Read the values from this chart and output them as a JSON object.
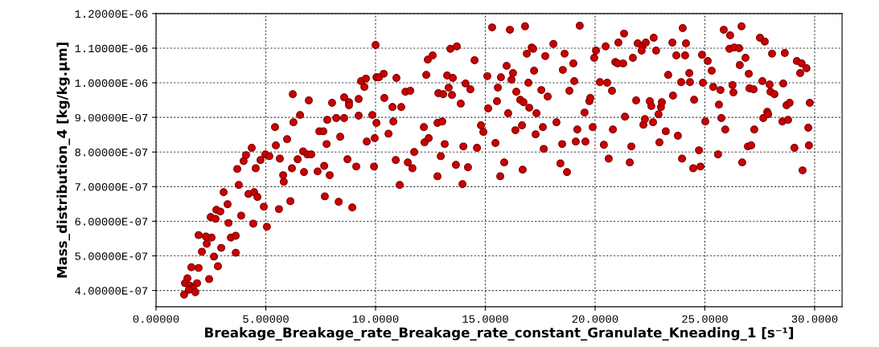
{
  "chart_data": {
    "type": "scatter",
    "xlabel": "Breakage_Breakage_rate_Breakage_rate_constant_Granulate_Kneading_1 [s⁻¹]",
    "ylabel": "Mass_distribution_4 [kg/kg.µm]",
    "xlim": [
      0,
      31.25
    ],
    "ylim": [
      3.53e-07,
      1.2e-06
    ],
    "xticks": [
      {
        "value": 0,
        "label": "0.00000"
      },
      {
        "value": 5,
        "label": "5.00000"
      },
      {
        "value": 10,
        "label": "10.0000"
      },
      {
        "value": 15,
        "label": "15.0000"
      },
      {
        "value": 20,
        "label": "20.0000"
      },
      {
        "value": 25,
        "label": "25.0000"
      },
      {
        "value": 30,
        "label": "30.0000"
      }
    ],
    "yticks": [
      {
        "value": 4e-07,
        "label": "4.00000E-07"
      },
      {
        "value": 5e-07,
        "label": "5.00000E-07"
      },
      {
        "value": 6e-07,
        "label": "6.00000E-07"
      },
      {
        "value": 7e-07,
        "label": "7.00000E-07"
      },
      {
        "value": 8e-07,
        "label": "8.00000E-07"
      },
      {
        "value": 9e-07,
        "label": "9.00000E-07"
      },
      {
        "value": 1e-06,
        "label": "1.00000E-06"
      },
      {
        "value": 1.1e-06,
        "label": "1.10000E-06"
      },
      {
        "value": 1.2e-06,
        "label": "1.20000E-06"
      }
    ],
    "grid": true,
    "marker": "circle",
    "series": [
      {
        "color": "#cc0000",
        "x": [
          1.28,
          1.43,
          1.32,
          1.54,
          1.68,
          1.87,
          1.79,
          1.5,
          1.61,
          1.94,
          2.42,
          1.94,
          2.27,
          2.53,
          2.31,
          2.09,
          2.64,
          2.82,
          2.97,
          3.3,
          2.49,
          2.71,
          2.75,
          2.93,
          3.26,
          3.08,
          3.77,
          3.7,
          3.41,
          3.63,
          3.63,
          3.88,
          4.21,
          4.47,
          4.62,
          4.43,
          4.91,
          5.05,
          5.6,
          6.12,
          3.99,
          4.1,
          4.36,
          4.54,
          4.76,
          4.98,
          5.16,
          5.46,
          5.42,
          5.64,
          5.97,
          5.79,
          5.82,
          6.19,
          6.26,
          6.23,
          6.56,
          6.96,
          6.7,
          6.89,
          7.07,
          6.45,
          6.74,
          7.36,
          7.44,
          7.62,
          7.77,
          7.66,
          7.91,
          7.69,
          8.32,
          8.94,
          7.8,
          8.02,
          8.21,
          8.57,
          8.39,
          8.72,
          9.12,
          8.57,
          8.79,
          8.79,
          9.23,
          9.23,
          9.34,
          9.56,
          9.49,
          9.6,
          9.85,
          9.93,
          10.0,
          10.04,
          10.04,
          9.96,
          10.15,
          10.37,
          10.4,
          10.59,
          10.77,
          10.81,
          10.92,
          10.95,
          11.1,
          11.17,
          11.36,
          11.58,
          11.47,
          11.68,
          11.76,
          12.2,
          12.23,
          12.42,
          12.31,
          12.38,
          12.6,
          12.82,
          12.82,
          13.04,
          12.86,
          13.08,
          12.97,
          13.15,
          13.26,
          13.52,
          13.33,
          13.48,
          13.41,
          13.7,
          13.66,
          13.88,
          13.96,
          14.0,
          14.1,
          14.21,
          14.32,
          14.51,
          14.62,
          14.8,
          14.91,
          15.09,
          15.13,
          15.31,
          15.46,
          15.57,
          15.53,
          15.68,
          15.71,
          15.86,
          15.97,
          16.04,
          16.12,
          16.19,
          16.26,
          16.37,
          16.41,
          16.59,
          16.74,
          16.67,
          16.7,
          16.81,
          16.89,
          16.96,
          17.0,
          17.11,
          17.18,
          17.22,
          17.29,
          17.33,
          17.55,
          17.62,
          17.66,
          17.73,
          17.84,
          18.1,
          18.24,
          18.42,
          18.5,
          18.53,
          18.61,
          18.72,
          18.83,
          19.01,
          19.05,
          19.12,
          19.19,
          19.3,
          19.52,
          19.56,
          19.74,
          19.78,
          19.89,
          19.96,
          20.04,
          20.22,
          20.55,
          20.4,
          20.48,
          20.62,
          20.77,
          20.81,
          20.92,
          21.03,
          21.06,
          21.28,
          21.32,
          21.36,
          21.58,
          21.65,
          21.72,
          21.87,
          21.94,
          22.16,
          22.12,
          22.31,
          22.2,
          22.27,
          22.49,
          22.56,
          22.64,
          22.67,
          22.78,
          22.93,
          22.89,
          23.0,
          23.04,
          23.22,
          23.33,
          23.52,
          23.55,
          23.7,
          23.77,
          23.92,
          23.96,
          23.99,
          24.1,
          24.14,
          24.29,
          24.32,
          24.47,
          24.8,
          24.51,
          24.73,
          24.87,
          24.91,
          25.02,
          25.13,
          25.31,
          25.38,
          25.6,
          25.64,
          25.71,
          25.75,
          25.86,
          25.93,
          26.15,
          26.12,
          26.34,
          26.56,
          26.26,
          26.3,
          26.59,
          26.67,
          26.7,
          26.85,
          26.96,
          27.11,
          27.0,
          27.03,
          27.22,
          27.25,
          27.51,
          27.73,
          27.62,
          27.66,
          27.84,
          27.88,
          27.95,
          27.99,
          28.17,
          28.06,
          28.53,
          28.79,
          28.57,
          28.64,
          28.72,
          28.86,
          29.08,
          29.19,
          29.41,
          29.63,
          29.34,
          29.45,
          29.71,
          29.74,
          29.78
        ],
        "values": [
          3.88e-07,
          4.35e-07,
          4.21e-07,
          4.14e-07,
          4.07e-07,
          4.21e-07,
          3.95e-07,
          4.02e-07,
          4.67e-07,
          4.65e-07,
          4.33e-07,
          5.6e-07,
          5.56e-07,
          5.53e-07,
          5.35e-07,
          5.12e-07,
          4.98e-07,
          4.7e-07,
          5.23e-07,
          5.95e-07,
          6.12e-07,
          6.07e-07,
          6.33e-07,
          6.28e-07,
          6.49e-07,
          6.84e-07,
          7.05e-07,
          7.51e-07,
          5.53e-07,
          5.58e-07,
          5.09e-07,
          6.16e-07,
          6.79e-07,
          6.84e-07,
          6.7e-07,
          5.93e-07,
          6.42e-07,
          5.84e-07,
          6.35e-07,
          6.58e-07,
          7.74e-07,
          7.91e-07,
          8.12e-07,
          7.53e-07,
          7.77e-07,
          7.93e-07,
          7.88e-07,
          8.19e-07,
          8.72e-07,
          7.81e-07,
          8.37e-07,
          7.33e-07,
          7.14e-07,
          7.53e-07,
          8.86e-07,
          9.67e-07,
          9.07e-07,
          9.49e-07,
          8.02e-07,
          7.93e-07,
          7.93e-07,
          7.79e-07,
          7.42e-07,
          7.44e-07,
          8.6e-07,
          8.6e-07,
          8.23e-07,
          7.6e-07,
          7.33e-07,
          6.72e-07,
          6.56e-07,
          6.4e-07,
          8.93e-07,
          9.42e-07,
          8.98e-07,
          8.98e-07,
          8.44e-07,
          7.79e-07,
          7.58e-07,
          9.58e-07,
          9.44e-07,
          9.35e-07,
          9.53e-07,
          9.05e-07,
          1.005e-06,
          1.012e-06,
          9.88e-07,
          8.3e-07,
          9.07e-07,
          7.58e-07,
          1.109e-06,
          1.016e-06,
          8.84e-07,
          8.4e-07,
          1.016e-06,
          1.026e-06,
          9.56e-07,
          8.53e-07,
          9.3e-07,
          8.88e-07,
          7.77e-07,
          1.014e-06,
          7.05e-07,
          9.3e-07,
          9.74e-07,
          9.77e-07,
          7.7e-07,
          7.53e-07,
          8e-07,
          8.72e-07,
          8.28e-07,
          8.4e-07,
          1.023e-06,
          1.067e-06,
          1.079e-06,
          7.3e-07,
          8.84e-07,
          8.88e-07,
          9.7e-07,
          9.67e-07,
          7.88e-07,
          8.23e-07,
          1.021e-06,
          1.014e-06,
          9.86e-07,
          9.65e-07,
          1.098e-06,
          1.105e-06,
          7.63e-07,
          9.4e-07,
          7.07e-07,
          8.16e-07,
          9.98e-07,
          7.56e-07,
          9.81e-07,
          1.065e-06,
          8.12e-07,
          8.77e-07,
          8.58e-07,
          1.019e-06,
          9.26e-07,
          1.16e-06,
          8.26e-07,
          9.86e-07,
          9.47e-07,
          7.3e-07,
          1.016e-06,
          7.7e-07,
          1.049e-06,
          9.12e-07,
          1.153e-06,
          1.009e-06,
          1.028e-06,
          8.63e-07,
          9.74e-07,
          9.51e-07,
          9.44e-07,
          8.77e-07,
          7.49e-07,
          1.163e-06,
          1.084e-06,
          1e-06,
          9.28e-07,
          1.102e-06,
          1.098e-06,
          1.035e-06,
          8.51e-07,
          9.12e-07,
          9.79e-07,
          8.72e-07,
          8.09e-07,
          1.077e-06,
          9.6e-07,
          1.112e-06,
          8.86e-07,
          7.67e-07,
          8.23e-07,
          1.037e-06,
          1.084e-06,
          7.42e-07,
          9.77e-07,
          1.056e-06,
          1.005e-06,
          8.3e-07,
          8.65e-07,
          1.165e-06,
          9.14e-07,
          8.3e-07,
          9.47e-07,
          9.56e-07,
          8.72e-07,
          1.072e-06,
          1.093e-06,
          1.002e-06,
          1e-06,
          8.21e-07,
          1.105e-06,
          7.81e-07,
          9.77e-07,
          8.65e-07,
          1.06e-06,
          1.056e-06,
          1.116e-06,
          1.056e-06,
          1.142e-06,
          9.02e-07,
          7.7e-07,
          8.16e-07,
          1.072e-06,
          9.49e-07,
          1.114e-06,
          1.107e-06,
          1.093e-06,
          1.116e-06,
          8.79e-07,
          8.95e-07,
          9.47e-07,
          9.33e-07,
          8.86e-07,
          1.13e-06,
          1.093e-06,
          8.28e-07,
          9.09e-07,
          9.3e-07,
          9.44e-07,
          8.6e-07,
          1.023e-06,
          1.116e-06,
          9.63e-07,
          1.079e-06,
          8.47e-07,
          1.002e-06,
          7.81e-07,
          1.158e-06,
          1.079e-06,
          1.114e-06,
          1.028e-06,
          1.002e-06,
          7.53e-07,
          7.58e-07,
          9.51e-07,
          8.05e-07,
          1.081e-06,
          1e-06,
          8.88e-07,
          1.063e-06,
          1.035e-06,
          9.88e-07,
          7.93e-07,
          9.37e-07,
          9.79e-07,
          8.98e-07,
          1.153e-06,
          8.65e-07,
          1.137e-06,
          1.098e-06,
          1.102e-06,
          1.1e-06,
          9.93e-07,
          9.72e-07,
          1.051e-06,
          1.163e-06,
          7.7e-07,
          1.072e-06,
          8.16e-07,
          8.19e-07,
          1.026e-06,
          9.84e-07,
          9.81e-07,
          8.65e-07,
          1.13e-06,
          1.119e-06,
          1.005e-06,
          8.98e-07,
          9.16e-07,
          9.09e-07,
          9.95e-07,
          9.74e-07,
          9.67e-07,
          1.084e-06,
          8.88e-07,
          8.93e-07,
          9.98e-07,
          1.086e-06,
          9.35e-07,
          9.42e-07,
          8.12e-07,
          1.063e-06,
          1.056e-06,
          1.042e-06,
          1.028e-06,
          7.47e-07,
          8.7e-07,
          8.19e-07,
          9.42e-07
        ]
      }
    ]
  }
}
